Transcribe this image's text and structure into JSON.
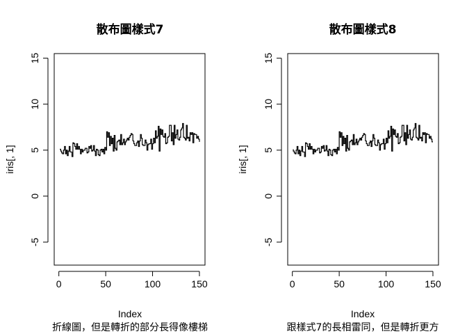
{
  "chart_data": [
    {
      "type": "line",
      "line_style": "step",
      "title": "散布圖樣式7",
      "xlabel": "Index",
      "ylabel": "iris[, 1]",
      "caption": "折線圖，但是轉折的部分長得像樓梯",
      "xlim": [
        0,
        150
      ],
      "ylim": [
        -7.5,
        15.5
      ],
      "xticks": [
        "0",
        "50",
        "100",
        "150"
      ],
      "yticks": [
        "-5",
        "0",
        "5",
        "10",
        "15"
      ],
      "series": [
        {
          "values": [
            5.1,
            4.9,
            4.7,
            4.6,
            5.0,
            5.4,
            4.6,
            5.0,
            4.4,
            4.9,
            5.4,
            4.8,
            4.8,
            4.3,
            5.8,
            5.7,
            5.4,
            5.1,
            5.7,
            5.1,
            5.4,
            5.1,
            4.6,
            5.1,
            4.8,
            5.0,
            5.0,
            5.2,
            5.2,
            4.7,
            4.8,
            5.4,
            5.2,
            5.5,
            4.9,
            5.0,
            5.5,
            4.9,
            4.4,
            5.1,
            5.0,
            4.5,
            4.4,
            5.0,
            5.1,
            4.8,
            5.1,
            4.6,
            5.3,
            5.0,
            7.0,
            6.4,
            6.9,
            5.5,
            6.5,
            5.7,
            6.3,
            4.9,
            6.6,
            5.2,
            5.0,
            5.9,
            6.0,
            6.1,
            5.6,
            6.7,
            5.6,
            5.8,
            6.2,
            5.6,
            5.9,
            6.1,
            6.3,
            6.1,
            6.4,
            6.6,
            6.8,
            6.7,
            6.0,
            5.7,
            5.5,
            5.5,
            5.8,
            6.0,
            5.4,
            6.0,
            6.7,
            6.3,
            5.6,
            5.5,
            5.5,
            6.1,
            5.8,
            5.0,
            5.6,
            5.7,
            5.7,
            6.2,
            5.1,
            5.7,
            6.3,
            5.8,
            7.1,
            6.3,
            6.5,
            7.6,
            4.9,
            7.3,
            6.7,
            7.2,
            6.5,
            6.4,
            6.8,
            5.7,
            5.8,
            6.4,
            6.5,
            7.7,
            7.7,
            6.0,
            6.9,
            5.6,
            7.7,
            6.3,
            6.7,
            7.2,
            6.2,
            6.1,
            6.4,
            7.2,
            7.4,
            7.9,
            6.4,
            6.3,
            6.1,
            7.7,
            6.3,
            6.4,
            6.0,
            6.9,
            6.7,
            6.9,
            5.8,
            6.8,
            6.7,
            6.7,
            6.3,
            6.5,
            6.2,
            5.9
          ]
        }
      ]
    },
    {
      "type": "line",
      "line_style": "step-reversed",
      "title": "散布圖樣式8",
      "xlabel": "Index",
      "ylabel": "iris[, 1]",
      "caption": "跟樣式7的長相雷同，但是轉折更方",
      "xlim": [
        0,
        150
      ],
      "ylim": [
        -7.5,
        15.5
      ],
      "xticks": [
        "0",
        "50",
        "100",
        "150"
      ],
      "yticks": [
        "-5",
        "0",
        "5",
        "10",
        "15"
      ],
      "series": [
        {
          "values": [
            5.1,
            4.9,
            4.7,
            4.6,
            5.0,
            5.4,
            4.6,
            5.0,
            4.4,
            4.9,
            5.4,
            4.8,
            4.8,
            4.3,
            5.8,
            5.7,
            5.4,
            5.1,
            5.7,
            5.1,
            5.4,
            5.1,
            4.6,
            5.1,
            4.8,
            5.0,
            5.0,
            5.2,
            5.2,
            4.7,
            4.8,
            5.4,
            5.2,
            5.5,
            4.9,
            5.0,
            5.5,
            4.9,
            4.4,
            5.1,
            5.0,
            4.5,
            4.4,
            5.0,
            5.1,
            4.8,
            5.1,
            4.6,
            5.3,
            5.0,
            7.0,
            6.4,
            6.9,
            5.5,
            6.5,
            5.7,
            6.3,
            4.9,
            6.6,
            5.2,
            5.0,
            5.9,
            6.0,
            6.1,
            5.6,
            6.7,
            5.6,
            5.8,
            6.2,
            5.6,
            5.9,
            6.1,
            6.3,
            6.1,
            6.4,
            6.6,
            6.8,
            6.7,
            6.0,
            5.7,
            5.5,
            5.5,
            5.8,
            6.0,
            5.4,
            6.0,
            6.7,
            6.3,
            5.6,
            5.5,
            5.5,
            6.1,
            5.8,
            5.0,
            5.6,
            5.7,
            5.7,
            6.2,
            5.1,
            5.7,
            6.3,
            5.8,
            7.1,
            6.3,
            6.5,
            7.6,
            4.9,
            7.3,
            6.7,
            7.2,
            6.5,
            6.4,
            6.8,
            5.7,
            5.8,
            6.4,
            6.5,
            7.7,
            7.7,
            6.0,
            6.9,
            5.6,
            7.7,
            6.3,
            6.7,
            7.2,
            6.2,
            6.1,
            6.4,
            7.2,
            7.4,
            7.9,
            6.4,
            6.3,
            6.1,
            7.7,
            6.3,
            6.4,
            6.0,
            6.9,
            6.7,
            6.9,
            5.8,
            6.8,
            6.7,
            6.7,
            6.3,
            6.5,
            6.2,
            5.9
          ]
        }
      ]
    }
  ]
}
